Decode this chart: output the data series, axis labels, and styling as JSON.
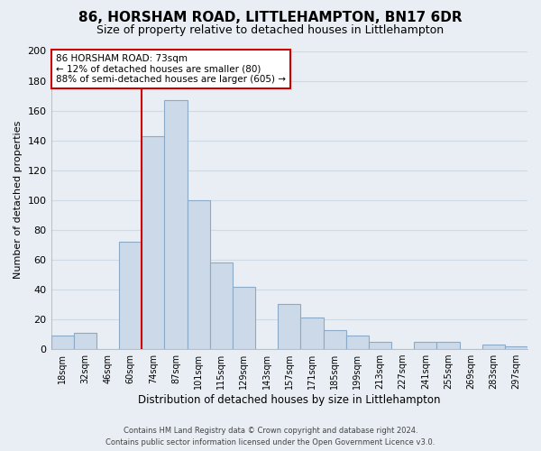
{
  "title": "86, HORSHAM ROAD, LITTLEHAMPTON, BN17 6DR",
  "subtitle": "Size of property relative to detached houses in Littlehampton",
  "xlabel": "Distribution of detached houses by size in Littlehampton",
  "ylabel": "Number of detached properties",
  "bin_labels": [
    "18sqm",
    "32sqm",
    "46sqm",
    "60sqm",
    "74sqm",
    "87sqm",
    "101sqm",
    "115sqm",
    "129sqm",
    "143sqm",
    "157sqm",
    "171sqm",
    "185sqm",
    "199sqm",
    "213sqm",
    "227sqm",
    "241sqm",
    "255sqm",
    "269sqm",
    "283sqm",
    "297sqm"
  ],
  "bar_heights": [
    9,
    11,
    0,
    72,
    143,
    167,
    100,
    58,
    42,
    0,
    30,
    21,
    13,
    9,
    5,
    0,
    5,
    5,
    0,
    3,
    2
  ],
  "bar_color": "#ccd9e8",
  "bar_edge_color": "#8aaac8",
  "property_line_color": "#cc0000",
  "property_line_bin_index": 4,
  "ylim": [
    0,
    200
  ],
  "yticks": [
    0,
    20,
    40,
    60,
    80,
    100,
    120,
    140,
    160,
    180,
    200
  ],
  "annotation_title": "86 HORSHAM ROAD: 73sqm",
  "annotation_line1": "← 12% of detached houses are smaller (80)",
  "annotation_line2": "88% of semi-detached houses are larger (605) →",
  "annotation_box_color": "#ffffff",
  "annotation_box_edge": "#cc0000",
  "footer_line1": "Contains HM Land Registry data © Crown copyright and database right 2024.",
  "footer_line2": "Contains public sector information licensed under the Open Government Licence v3.0.",
  "background_color": "#e8eef4",
  "grid_color": "#d0dae4",
  "title_fontsize": 11,
  "subtitle_fontsize": 9
}
